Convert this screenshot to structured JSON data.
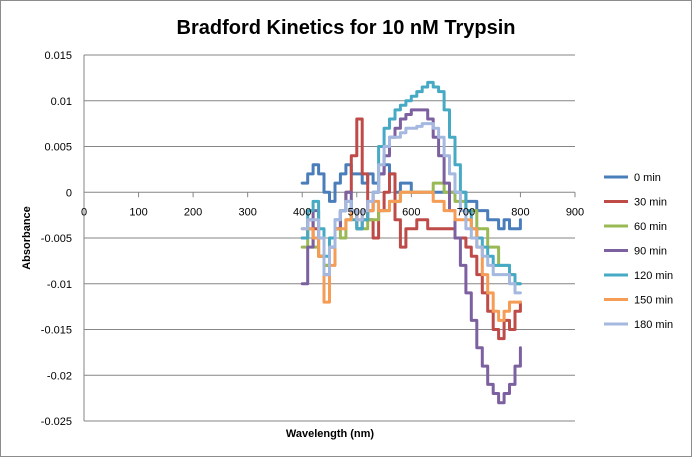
{
  "chart_data": {
    "type": "line",
    "title": "Bradford Kinetics for 10 nM Trypsin",
    "xlabel": "Wavelength (nm)",
    "ylabel": "Absorbance",
    "xlim": [
      0,
      900
    ],
    "ylim": [
      -0.025,
      0.015
    ],
    "x_ticks": [
      0,
      100,
      200,
      300,
      400,
      500,
      600,
      700,
      800,
      900
    ],
    "y_ticks": [
      0.015,
      0.01,
      0.005,
      0,
      -0.005,
      -0.01,
      -0.015,
      -0.02,
      -0.025
    ],
    "x_tick_labels": [
      "0",
      "100",
      "200",
      "300",
      "400",
      "500",
      "600",
      "700",
      "800",
      "900"
    ],
    "y_tick_labels": [
      "0.015",
      "0.01",
      "0.005",
      "0",
      "-0.005",
      "-0.01",
      "-0.015",
      "-0.02",
      "-0.025"
    ],
    "grid": true,
    "legend_position": "right",
    "series": [
      {
        "name": "0 min",
        "color": "#4a7ebb",
        "points": [
          [
            400,
            0.001
          ],
          [
            410,
            0.002
          ],
          [
            420,
            0.003
          ],
          [
            430,
            0.002
          ],
          [
            440,
            0.0
          ],
          [
            450,
            -0.001
          ],
          [
            460,
            0.001
          ],
          [
            470,
            0.002
          ],
          [
            480,
            0.003
          ],
          [
            490,
            0.002
          ],
          [
            500,
            0.002
          ],
          [
            510,
            0.001
          ],
          [
            520,
            0.002
          ],
          [
            530,
            0.001
          ],
          [
            540,
            0.002
          ],
          [
            550,
            0.003
          ],
          [
            560,
            0.002
          ],
          [
            570,
            0.0
          ],
          [
            580,
            0.001
          ],
          [
            600,
            0.0
          ],
          [
            620,
            0.0
          ],
          [
            640,
            0.0
          ],
          [
            660,
            0.0
          ],
          [
            680,
            0.0
          ],
          [
            700,
            -0.001
          ],
          [
            710,
            -0.001
          ],
          [
            720,
            -0.002
          ],
          [
            730,
            -0.002
          ],
          [
            740,
            -0.003
          ],
          [
            750,
            -0.003
          ],
          [
            760,
            -0.004
          ],
          [
            770,
            -0.003
          ],
          [
            780,
            -0.004
          ],
          [
            790,
            -0.004
          ],
          [
            800,
            -0.003
          ]
        ]
      },
      {
        "name": "30 min",
        "color": "#be4b48",
        "points": [
          [
            400,
            -0.005
          ],
          [
            410,
            -0.003
          ],
          [
            420,
            -0.004
          ],
          [
            430,
            -0.007
          ],
          [
            440,
            -0.008
          ],
          [
            450,
            -0.006
          ],
          [
            460,
            -0.004
          ],
          [
            470,
            -0.002
          ],
          [
            480,
            0.0
          ],
          [
            490,
            0.004
          ],
          [
            500,
            0.008
          ],
          [
            510,
            0.002
          ],
          [
            520,
            -0.003
          ],
          [
            530,
            -0.005
          ],
          [
            540,
            -0.002
          ],
          [
            550,
            0.0
          ],
          [
            560,
            0.002
          ],
          [
            570,
            -0.003
          ],
          [
            580,
            -0.006
          ],
          [
            590,
            -0.004
          ],
          [
            600,
            -0.004
          ],
          [
            610,
            -0.003
          ],
          [
            620,
            -0.003
          ],
          [
            630,
            -0.004
          ],
          [
            640,
            -0.004
          ],
          [
            660,
            -0.004
          ],
          [
            680,
            -0.005
          ],
          [
            700,
            -0.006
          ],
          [
            710,
            -0.007
          ],
          [
            720,
            -0.009
          ],
          [
            730,
            -0.011
          ],
          [
            740,
            -0.013
          ],
          [
            750,
            -0.015
          ],
          [
            760,
            -0.016
          ],
          [
            770,
            -0.014
          ],
          [
            780,
            -0.015
          ],
          [
            790,
            -0.013
          ],
          [
            800,
            -0.012
          ]
        ]
      },
      {
        "name": "60 min",
        "color": "#98b954",
        "points": [
          [
            400,
            -0.006
          ],
          [
            410,
            -0.004
          ],
          [
            420,
            -0.006
          ],
          [
            430,
            -0.007
          ],
          [
            440,
            -0.008
          ],
          [
            450,
            -0.005
          ],
          [
            460,
            -0.004
          ],
          [
            470,
            -0.005
          ],
          [
            480,
            -0.003
          ],
          [
            490,
            -0.002
          ],
          [
            500,
            -0.004
          ],
          [
            520,
            -0.003
          ],
          [
            540,
            -0.002
          ],
          [
            560,
            -0.001
          ],
          [
            580,
            0.0
          ],
          [
            600,
            0.0
          ],
          [
            620,
            0.0
          ],
          [
            640,
            0.001
          ],
          [
            660,
            0.0
          ],
          [
            680,
            -0.001
          ],
          [
            700,
            -0.002
          ],
          [
            720,
            -0.004
          ],
          [
            740,
            -0.006
          ],
          [
            760,
            -0.008
          ],
          [
            780,
            -0.009
          ],
          [
            790,
            -0.01
          ],
          [
            800,
            -0.01
          ]
        ]
      },
      {
        "name": "90 min",
        "color": "#7d60a0",
        "points": [
          [
            400,
            -0.01
          ],
          [
            410,
            -0.006
          ],
          [
            420,
            -0.002
          ],
          [
            430,
            -0.005
          ],
          [
            440,
            -0.009
          ],
          [
            450,
            -0.006
          ],
          [
            460,
            -0.004
          ],
          [
            470,
            -0.002
          ],
          [
            480,
            0.0
          ],
          [
            490,
            -0.002
          ],
          [
            500,
            -0.004
          ],
          [
            510,
            -0.003
          ],
          [
            520,
            -0.002
          ],
          [
            530,
            0.0
          ],
          [
            540,
            0.002
          ],
          [
            550,
            0.004
          ],
          [
            560,
            0.006
          ],
          [
            570,
            0.007
          ],
          [
            580,
            0.008
          ],
          [
            590,
            0.0085
          ],
          [
            600,
            0.009
          ],
          [
            610,
            0.009
          ],
          [
            620,
            0.009
          ],
          [
            630,
            0.008
          ],
          [
            640,
            0.006
          ],
          [
            650,
            0.004
          ],
          [
            660,
            0.001
          ],
          [
            670,
            -0.002
          ],
          [
            680,
            -0.005
          ],
          [
            690,
            -0.008
          ],
          [
            700,
            -0.011
          ],
          [
            710,
            -0.014
          ],
          [
            720,
            -0.017
          ],
          [
            730,
            -0.019
          ],
          [
            740,
            -0.021
          ],
          [
            750,
            -0.022
          ],
          [
            760,
            -0.023
          ],
          [
            770,
            -0.022
          ],
          [
            780,
            -0.021
          ],
          [
            790,
            -0.019
          ],
          [
            800,
            -0.017
          ]
        ]
      },
      {
        "name": "120 min",
        "color": "#46aac5",
        "points": [
          [
            400,
            -0.005
          ],
          [
            410,
            -0.002
          ],
          [
            420,
            -0.001
          ],
          [
            430,
            -0.004
          ],
          [
            440,
            -0.007
          ],
          [
            450,
            -0.005
          ],
          [
            460,
            -0.003
          ],
          [
            470,
            -0.002
          ],
          [
            480,
            -0.001
          ],
          [
            490,
            -0.003
          ],
          [
            500,
            -0.004
          ],
          [
            510,
            -0.003
          ],
          [
            520,
            -0.002
          ],
          [
            530,
            0.0
          ],
          [
            540,
            0.005
          ],
          [
            550,
            0.007
          ],
          [
            560,
            0.008
          ],
          [
            570,
            0.009
          ],
          [
            580,
            0.0095
          ],
          [
            590,
            0.01
          ],
          [
            600,
            0.0105
          ],
          [
            610,
            0.011
          ],
          [
            620,
            0.0115
          ],
          [
            630,
            0.012
          ],
          [
            640,
            0.0115
          ],
          [
            650,
            0.011
          ],
          [
            660,
            0.009
          ],
          [
            670,
            0.006
          ],
          [
            680,
            0.003
          ],
          [
            690,
            0.0
          ],
          [
            700,
            -0.002
          ],
          [
            710,
            -0.004
          ],
          [
            720,
            -0.005
          ],
          [
            730,
            -0.006
          ],
          [
            740,
            -0.007
          ],
          [
            750,
            -0.008
          ],
          [
            760,
            -0.008
          ],
          [
            770,
            -0.008
          ],
          [
            780,
            -0.009
          ],
          [
            790,
            -0.01
          ],
          [
            800,
            -0.01
          ]
        ]
      },
      {
        "name": "150 min",
        "color": "#f59d56",
        "points": [
          [
            400,
            -0.004
          ],
          [
            410,
            -0.004
          ],
          [
            420,
            -0.005
          ],
          [
            430,
            -0.007
          ],
          [
            440,
            -0.012
          ],
          [
            450,
            -0.008
          ],
          [
            460,
            -0.004
          ],
          [
            470,
            -0.004
          ],
          [
            480,
            -0.003
          ],
          [
            490,
            -0.002
          ],
          [
            500,
            -0.003
          ],
          [
            510,
            -0.002
          ],
          [
            520,
            -0.002
          ],
          [
            530,
            -0.001
          ],
          [
            540,
            -0.002
          ],
          [
            560,
            -0.001
          ],
          [
            580,
            0.0
          ],
          [
            600,
            0.0
          ],
          [
            620,
            0.0
          ],
          [
            640,
            -0.001
          ],
          [
            660,
            -0.002
          ],
          [
            680,
            -0.003
          ],
          [
            700,
            -0.003
          ],
          [
            710,
            -0.004
          ],
          [
            720,
            -0.006
          ],
          [
            730,
            -0.009
          ],
          [
            740,
            -0.011
          ],
          [
            750,
            -0.013
          ],
          [
            760,
            -0.014
          ],
          [
            770,
            -0.013
          ],
          [
            780,
            -0.012
          ],
          [
            790,
            -0.012
          ],
          [
            800,
            -0.012
          ]
        ]
      },
      {
        "name": "180 min",
        "color": "#a5b8df",
        "points": [
          [
            400,
            -0.004
          ],
          [
            410,
            -0.003
          ],
          [
            420,
            -0.003
          ],
          [
            430,
            -0.005
          ],
          [
            440,
            -0.009
          ],
          [
            450,
            -0.006
          ],
          [
            460,
            -0.003
          ],
          [
            470,
            -0.002
          ],
          [
            480,
            -0.001
          ],
          [
            490,
            -0.002
          ],
          [
            500,
            -0.003
          ],
          [
            510,
            -0.002
          ],
          [
            520,
            -0.001
          ],
          [
            530,
            0.0
          ],
          [
            540,
            0.003
          ],
          [
            550,
            0.005
          ],
          [
            560,
            0.006
          ],
          [
            570,
            0.006
          ],
          [
            580,
            0.0065
          ],
          [
            590,
            0.007
          ],
          [
            600,
            0.007
          ],
          [
            610,
            0.0072
          ],
          [
            620,
            0.0075
          ],
          [
            630,
            0.0075
          ],
          [
            640,
            0.007
          ],
          [
            650,
            0.006
          ],
          [
            660,
            0.004
          ],
          [
            670,
            0.002
          ],
          [
            680,
            0.0
          ],
          [
            690,
            -0.002
          ],
          [
            700,
            -0.004
          ],
          [
            710,
            -0.005
          ],
          [
            720,
            -0.006
          ],
          [
            730,
            -0.007
          ],
          [
            740,
            -0.008
          ],
          [
            750,
            -0.009
          ],
          [
            760,
            -0.009
          ],
          [
            770,
            -0.009
          ],
          [
            780,
            -0.01
          ],
          [
            790,
            -0.011
          ],
          [
            800,
            -0.011
          ]
        ]
      }
    ]
  }
}
